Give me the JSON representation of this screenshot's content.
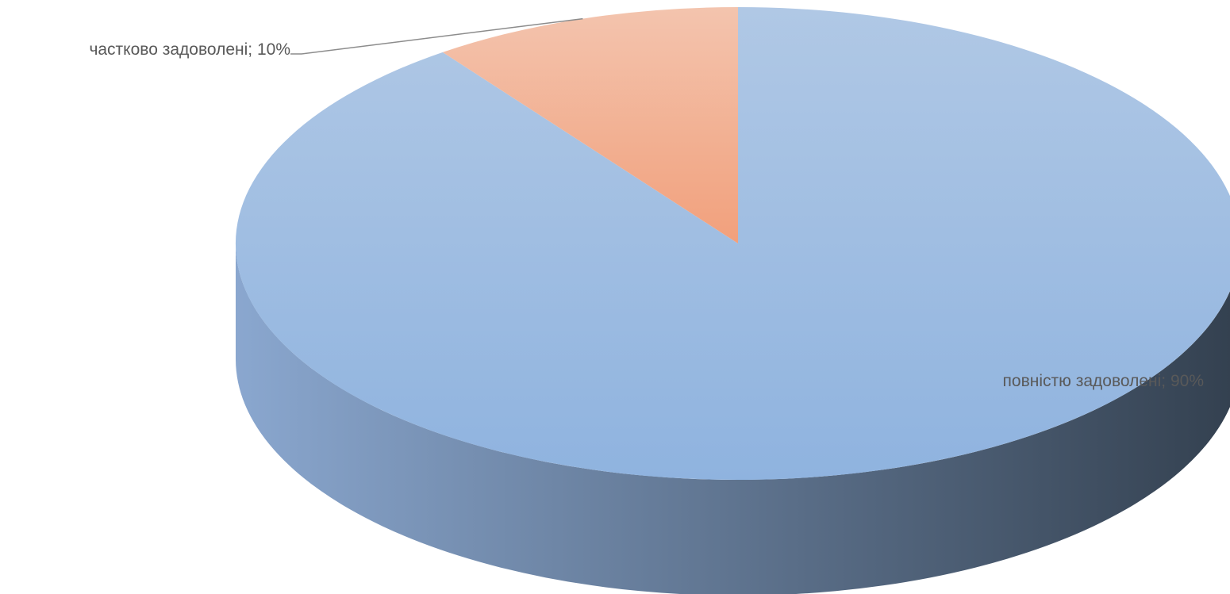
{
  "chart_data": {
    "type": "pie",
    "style": "3d",
    "title": "",
    "slices": [
      {
        "name": "частково задоволені",
        "value": 10,
        "label": "частково задоволені; 10%",
        "color": "#f2a07c",
        "color_light": "#f3c4ae"
      },
      {
        "name": "повністю задоволені",
        "value": 90,
        "label": "повністю задоволені; 90%",
        "color": "#8fb3df",
        "color_light": "#b0c8e5"
      }
    ],
    "side_colors": {
      "left": "#8aa7cf",
      "right": "#33404f"
    },
    "leader_color": "#8c8c8c"
  }
}
